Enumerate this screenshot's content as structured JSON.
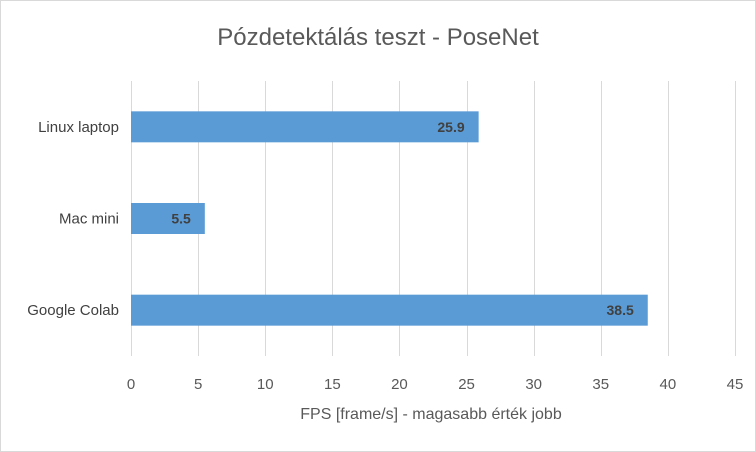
{
  "chart_data": {
    "type": "bar",
    "orientation": "horizontal",
    "title": "Pózdetektálás teszt - PoseNet",
    "xlabel": "FPS [frame/s] - magasabb érték jobb",
    "ylabel": "",
    "categories": [
      "Linux laptop",
      "Mac mini",
      "Google Colab"
    ],
    "values": [
      25.9,
      5.5,
      38.5
    ],
    "data_labels": [
      "25.9",
      "5.5",
      "38.5"
    ],
    "xlim": [
      0,
      45
    ],
    "xticks": [
      0,
      5,
      10,
      15,
      20,
      25,
      30,
      35,
      40,
      45
    ],
    "grid": "vertical",
    "legend": "none",
    "bar_color": "#5b9bd5"
  }
}
